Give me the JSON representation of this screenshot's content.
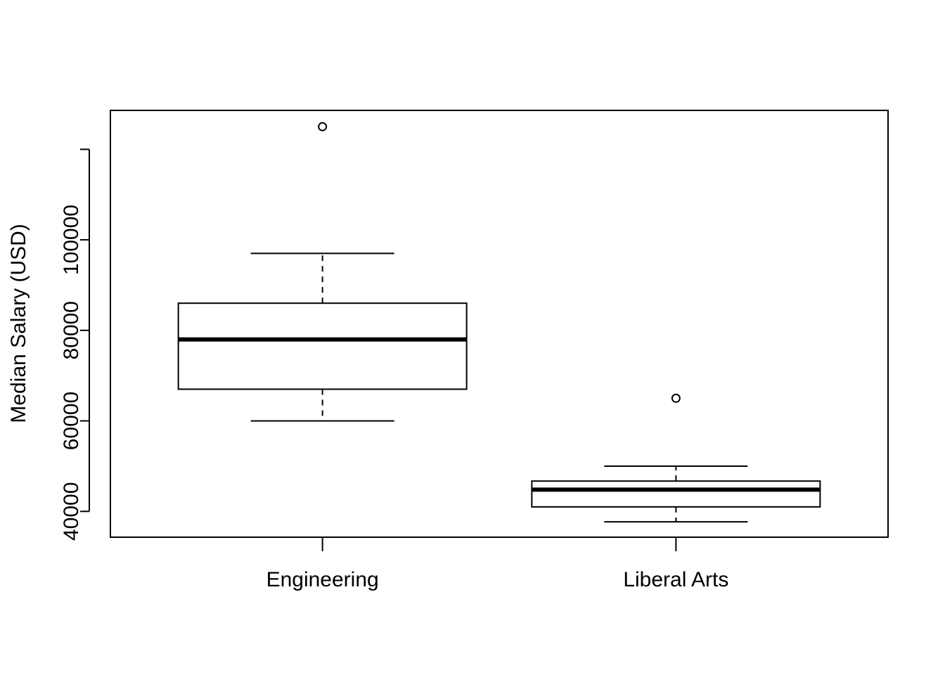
{
  "chart_data": {
    "type": "boxplot",
    "title": "",
    "xlabel": "",
    "ylabel": "Median Salary (USD)",
    "categories": [
      "Engineering",
      "Liberal Arts"
    ],
    "boxes": [
      {
        "name": "Engineering",
        "whisker_low": 60000,
        "q1": 67000,
        "median": 78000,
        "q3": 86000,
        "whisker_high": 97000,
        "outliers": [
          125000
        ]
      },
      {
        "name": "Liberal Arts",
        "whisker_low": 37700,
        "q1": 41000,
        "median": 44800,
        "q3": 46700,
        "whisker_high": 50000,
        "outliers": [
          65000
        ]
      }
    ],
    "yticks": [
      "40000",
      "60000",
      "80000",
      "100000",
      ""
    ],
    "ytick_values": [
      40000,
      60000,
      80000,
      100000,
      120000
    ],
    "ylim": [
      34300,
      128600
    ],
    "grid": false,
    "legend": "none"
  }
}
